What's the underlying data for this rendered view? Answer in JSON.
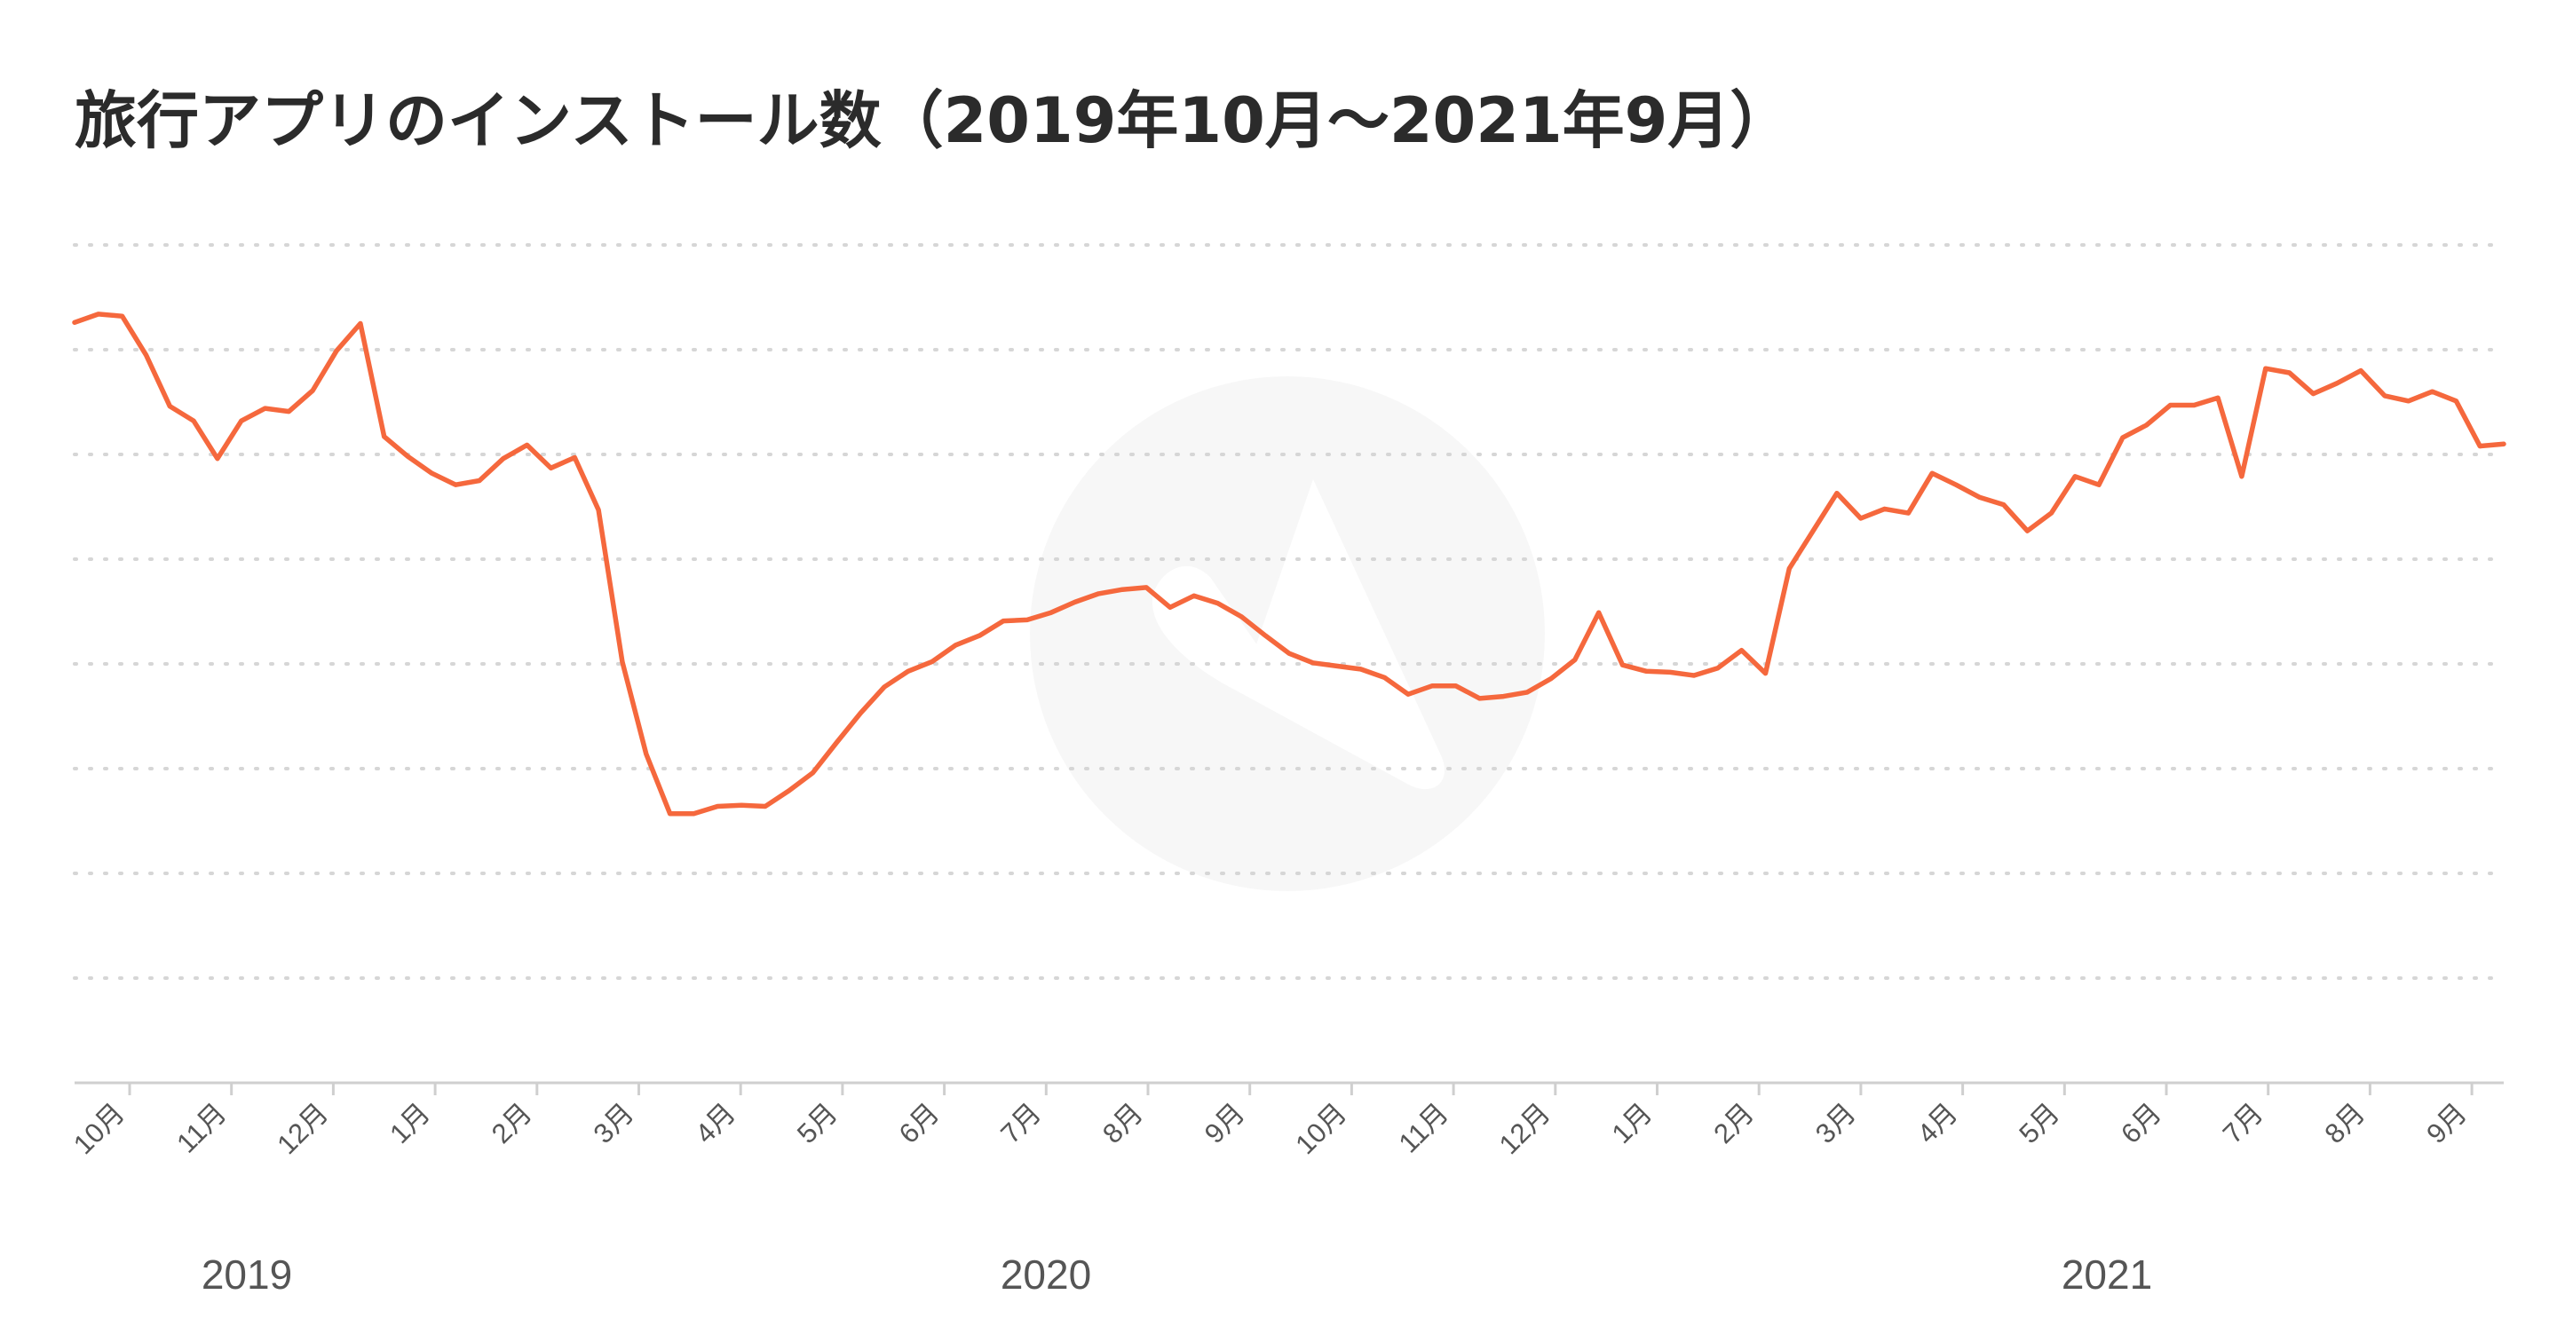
{
  "chart_data": {
    "type": "line",
    "title": "旅行アプリのインストール数（2019年10月〜2021年9月）",
    "xlabel": "",
    "ylabel": "",
    "y_tick_labels_visible": false,
    "ylim": [
      0,
      8
    ],
    "grid": true,
    "grid_style": "dotted horizontal",
    "legend": "none",
    "line_color": "#f5683d",
    "watermark": "logo",
    "month_ticks": [
      "10月",
      "11月",
      "12月",
      "1月",
      "2月",
      "3月",
      "4月",
      "5月",
      "6月",
      "7月",
      "8月",
      "9月",
      "10月",
      "11月",
      "12月",
      "1月",
      "2月",
      "3月",
      "4月",
      "5月",
      "6月",
      "7月",
      "8月",
      "9月"
    ],
    "year_labels": [
      "2019",
      "2020",
      "2021"
    ],
    "series": [
      {
        "values": [
          7.26,
          7.34,
          7.32,
          6.95,
          6.46,
          6.32,
          5.96,
          6.32,
          6.44,
          6.41,
          6.61,
          6.99,
          7.25,
          6.17,
          5.98,
          5.82,
          5.71,
          5.75,
          5.96,
          6.09,
          5.87,
          5.97,
          5.47,
          4.02,
          3.14,
          2.57,
          2.57,
          2.64,
          2.65,
          2.64,
          2.79,
          2.96,
          3.25,
          3.53,
          3.78,
          3.93,
          4.02,
          4.18,
          4.27,
          4.41,
          4.42,
          4.49,
          4.59,
          4.67,
          4.71,
          4.73,
          4.54,
          4.65,
          4.58,
          4.45,
          4.27,
          4.1,
          4.01,
          3.98,
          3.95,
          3.87,
          3.71,
          3.79,
          3.79,
          3.67,
          3.69,
          3.73,
          3.86,
          4.04,
          4.49,
          3.99,
          3.93,
          3.92,
          3.89,
          3.96,
          4.13,
          3.91,
          4.91,
          5.27,
          5.63,
          5.39,
          5.48,
          5.44,
          5.82,
          5.71,
          5.59,
          5.52,
          5.27,
          5.44,
          5.79,
          5.71,
          6.16,
          6.28,
          6.47,
          6.47,
          6.54,
          5.79,
          6.82,
          6.78,
          6.58,
          6.68,
          6.8,
          6.56,
          6.51,
          6.6,
          6.51,
          6.08,
          6.1
        ]
      }
    ]
  }
}
